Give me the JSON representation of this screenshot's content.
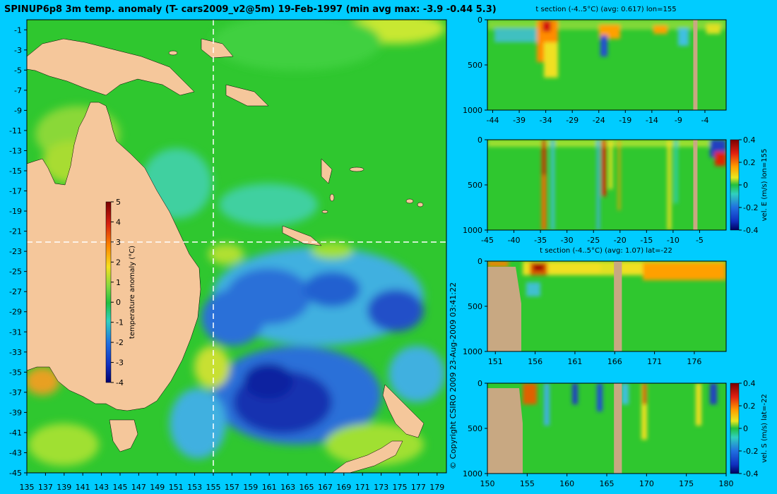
{
  "title": "SPINUP6p8 3m temp. anomaly (T- cars2009_v2@5m) 19-Feb-1997 (min avg max: -3.9 -0.44 5.3)",
  "copyright": "© Copyright CSIRO 2009   23-Aug-2009 03:41:22",
  "colors": {
    "background": "#00ccff",
    "land": "#f5c79b",
    "section_land": "#c8a882",
    "ocean_base": "#2fc72f"
  },
  "chart_data": [
    {
      "type": "heatmap",
      "name": "map",
      "xlim": [
        135,
        180
      ],
      "ylim": [
        -45,
        0
      ],
      "x_ticks": [
        "135",
        "137",
        "139",
        "141",
        "143",
        "145",
        "147",
        "149",
        "151",
        "153",
        "155",
        "157",
        "159",
        "161",
        "163",
        "165",
        "167",
        "169",
        "171",
        "173",
        "175",
        "177",
        "179"
      ],
      "y_ticks": [
        "-1",
        "-3",
        "-5",
        "-7",
        "-9",
        "-11",
        "-13",
        "-15",
        "-17",
        "-19",
        "-21",
        "-23",
        "-25",
        "-27",
        "-29",
        "-31",
        "-33",
        "-35",
        "-37",
        "-39",
        "-41",
        "-43",
        "-45"
      ],
      "crosshair": {
        "lon": 155,
        "lat": -22
      },
      "colorbar": {
        "label": "temperature anomaly (°C)",
        "range": [
          -4,
          5
        ],
        "ticks": [
          "5",
          "4",
          "3",
          "2",
          "1",
          "0",
          "-1",
          "-2",
          "-3",
          "-4"
        ]
      }
    },
    {
      "type": "heatmap",
      "name": "t_section_lon",
      "title": "t section (-4..5°C) (avg: 0.617) lon=155",
      "xlim": [
        -45,
        0
      ],
      "ylim": [
        1000,
        0
      ],
      "x_ticks": [
        "-44",
        "-39",
        "-34",
        "-29",
        "-24",
        "-19",
        "-14",
        "-9",
        "-4"
      ],
      "y_ticks": [
        "0",
        "500",
        "1000"
      ],
      "land_columns": [
        [
          -6.2,
          -5.4
        ]
      ]
    },
    {
      "type": "heatmap",
      "name": "vel_e_lon",
      "colorbar_label": "vel. E (m/s) lon=155",
      "xlim": [
        -45,
        0
      ],
      "ylim": [
        1000,
        0
      ],
      "x_ticks": [
        "-45",
        "-40",
        "-35",
        "-30",
        "-25",
        "-20",
        "-15",
        "-10",
        "-5"
      ],
      "y_ticks": [
        "0",
        "500",
        "1000"
      ],
      "colorbar_ticks": [
        "0.4",
        "0.2",
        "0",
        "-0.2",
        "-0.4"
      ],
      "land_columns": [
        [
          -6.2,
          -5.4
        ]
      ]
    },
    {
      "type": "heatmap",
      "name": "t_section_lat",
      "title": "t section (-4..5°C) (avg: 1.07) lat=-22",
      "xlim": [
        150,
        180
      ],
      "ylim": [
        1000,
        0
      ],
      "x_ticks": [
        "151",
        "156",
        "161",
        "166",
        "171",
        "176"
      ],
      "y_ticks": [
        "0",
        "500",
        "1000"
      ],
      "land_columns": [
        [
          165.9,
          166.9
        ]
      ]
    },
    {
      "type": "heatmap",
      "name": "vel_s_lat",
      "colorbar_label": "vel. S (m/s) lat=-22",
      "xlim": [
        150,
        180
      ],
      "ylim": [
        1000,
        0
      ],
      "x_ticks": [
        "150",
        "155",
        "160",
        "165",
        "170",
        "175",
        "180"
      ],
      "y_ticks": [
        "0",
        "500",
        "1000"
      ],
      "colorbar_ticks": [
        "0.4",
        "0.2",
        "0",
        "-0.2",
        "-0.4"
      ],
      "land_columns": [
        [
          165.9,
          166.9
        ]
      ]
    }
  ]
}
